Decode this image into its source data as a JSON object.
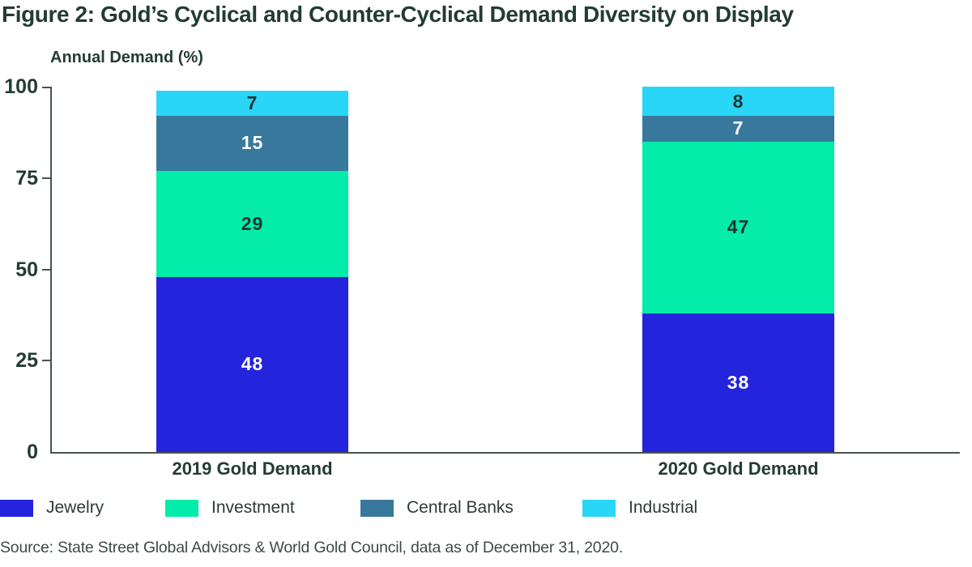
{
  "title": "Figure 2: Gold’s Cyclical and Counter-Cyclical Demand Diversity on Display",
  "source": "Source: State Street Global Advisors & World Gold Council, data as of December 31, 2020.",
  "chart_data": {
    "type": "bar",
    "stacked": true,
    "title": "Figure 2: Gold’s Cyclical and Counter-Cyclical Demand Diversity on Display",
    "ylabel": "Annual Demand (%)",
    "xlabel": "",
    "categories": [
      "2019 Gold Demand",
      "2020 Gold Demand"
    ],
    "series": [
      {
        "name": "Jewelry",
        "color": "#2424DC",
        "label_color": "#FFFFFF",
        "values": [
          48,
          38
        ]
      },
      {
        "name": "Investment",
        "color": "#04ECAA",
        "label_color": "#1B352D",
        "values": [
          29,
          47
        ]
      },
      {
        "name": "Central Banks",
        "color": "#38789C",
        "label_color": "#FFFFFF",
        "values": [
          15,
          7
        ]
      },
      {
        "name": "Industrial",
        "color": "#29D6F7",
        "label_color": "#1B352D",
        "values": [
          7,
          8
        ]
      }
    ],
    "totals": [
      99,
      100
    ],
    "yticks": [
      0,
      25,
      50,
      75,
      100
    ],
    "ylim": [
      0,
      100
    ],
    "grid": false,
    "legend_position": "bottom",
    "legend": [
      "Jewelry",
      "Investment",
      "Central Banks",
      "Industrial"
    ]
  },
  "colors": {
    "title_text": "#233C33",
    "axis_line": "#49534E",
    "tick_text": "#233C33",
    "legend_text": "#2F3B36",
    "source_text": "#3E4B45",
    "background": "#FFFFFF"
  }
}
